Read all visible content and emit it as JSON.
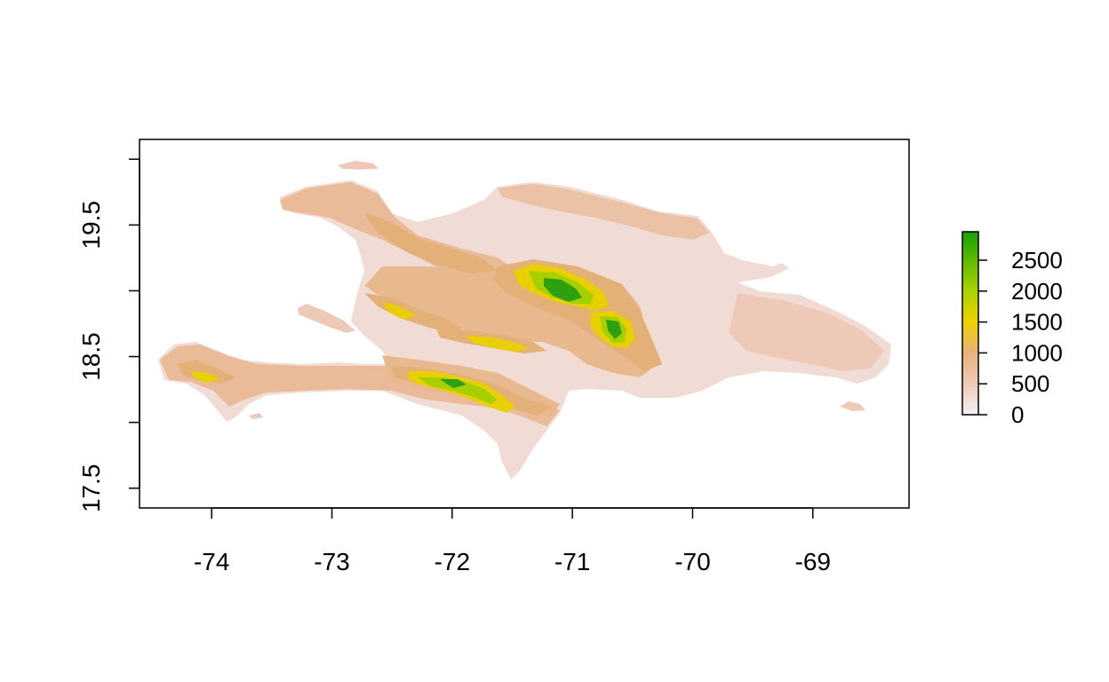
{
  "map": {
    "type": "raster",
    "x_ticks": [
      "-74",
      "-73",
      "-72",
      "-71",
      "-70",
      "-69"
    ],
    "y_ticks": [
      "17.5",
      "18.5",
      "19.5"
    ],
    "x_tick_values": [
      -74,
      -73,
      -72,
      -71,
      -70,
      -69
    ],
    "y_tick_values": [
      17.5,
      18.5,
      19.5
    ],
    "y_minor_tick_values": [
      18.0,
      19.0,
      20.0
    ],
    "xlim": [
      -74.6,
      -68.2
    ],
    "ylim": [
      17.35,
      20.15
    ]
  },
  "legend": {
    "labels": [
      "0",
      "500",
      "1000",
      "1500",
      "2000",
      "2500"
    ],
    "values": [
      0,
      500,
      1000,
      1500,
      2000,
      2500
    ],
    "max": 2960,
    "colors": [
      "#f2f2f2",
      "#eec9b8",
      "#e8b27a",
      "#edd100",
      "#a8d300",
      "#18a200"
    ]
  },
  "colors": {
    "lowland": "#f0dcd4",
    "low": "#edc5b3",
    "mid": "#e3b078",
    "high_yellow": "#e8d000",
    "high_lime": "#a6cf00",
    "peak_green": "#2e9f10"
  }
}
